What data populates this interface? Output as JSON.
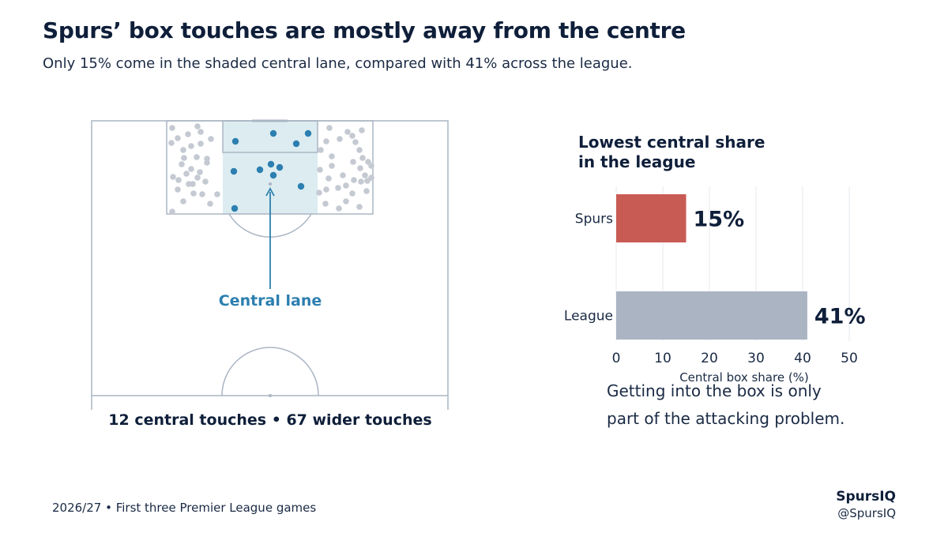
{
  "title": "Spurs’ box touches are mostly away from the centre",
  "subtitle": "Only 15% come in the shaded central lane, compared with 41% across the league.",
  "pitch": {
    "lane_label": "Central lane",
    "caption": "12 central touches • 67 wider touches",
    "colors": {
      "central": "#2c7fb0",
      "wide": "#c4c9d2",
      "lane": "#dcecf0",
      "lines": "#aab5c3"
    }
  },
  "note": {
    "line1": "Getting into the box is only",
    "line2": "part of the attacking problem."
  },
  "footer": {
    "season": "2026/27 • First three Premier League games",
    "brand": "SpursIQ",
    "handle": "@SpursIQ"
  },
  "chart_data": {
    "type": "bar",
    "orientation": "horizontal",
    "title": "Lowest central share in the league",
    "title_lines": [
      "Lowest central share",
      "in the league"
    ],
    "categories": [
      "Spurs",
      "League"
    ],
    "values": [
      15,
      41
    ],
    "value_labels": [
      "15%",
      "41%"
    ],
    "colors": [
      "#c95b55",
      "#aab4c2"
    ],
    "xlabel": "Central box share (%)",
    "xlim": [
      0,
      50
    ],
    "xticks": [
      "0",
      "10",
      "20",
      "30",
      "40",
      "50"
    ],
    "grid": true
  }
}
